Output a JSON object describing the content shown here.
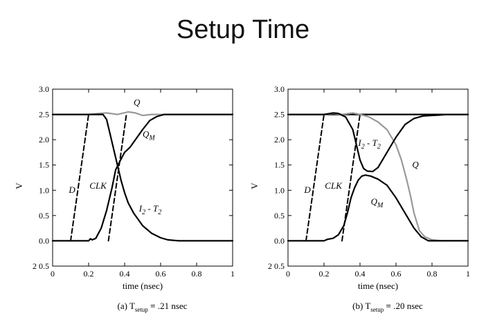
{
  "slide": {
    "title": "Setup Time"
  },
  "chart_data": [
    {
      "type": "line",
      "xlabel": "time (nsec)",
      "ylabel": "V",
      "xlim": [
        0,
        1
      ],
      "ylim": [
        -0.5,
        3.0
      ],
      "x_ticks": [
        "0",
        "0.2",
        "0.4",
        "0.6",
        "0.8",
        "1"
      ],
      "y_ticks": [
        "2 0.5",
        "0.0",
        "0.5",
        "1.0",
        "1.5",
        "2.0",
        "2.5",
        "3.0"
      ],
      "caption": {
        "prefix": "(a) T",
        "sub": "setup",
        "eq": "=",
        "value": ".21 nsec"
      },
      "labels": [
        {
          "text": "Q",
          "x": 0.45,
          "y": 2.68
        },
        {
          "text": "Q",
          "sub": "M",
          "x": 0.5,
          "y": 2.05
        },
        {
          "text": "D",
          "x": 0.09,
          "y": 0.95
        },
        {
          "text": "CLK",
          "x": 0.205,
          "y": 1.03
        },
        {
          "text": "I",
          "sub": "2",
          "dash": "-",
          "post": "T",
          "post_sub": "2",
          "x": 0.48,
          "y": 0.58
        }
      ],
      "series": [
        {
          "style": "dashed",
          "color": "#000000",
          "x": [
            0.1,
            0.2
          ],
          "values": [
            0.0,
            2.5
          ]
        },
        {
          "style": "dashed",
          "color": "#000000",
          "x": [
            0.31,
            0.41
          ],
          "values": [
            0.0,
            2.5
          ]
        },
        {
          "style": "solid",
          "color": "#999999",
          "x": [
            0,
            0.2,
            0.26,
            0.3,
            0.36,
            0.42,
            0.46,
            0.5,
            0.55,
            0.6,
            1.0
          ],
          "values": [
            2.5,
            2.5,
            2.52,
            2.53,
            2.5,
            2.55,
            2.53,
            2.48,
            2.5,
            2.5,
            2.5
          ]
        },
        {
          "style": "solid",
          "color": "#000000",
          "x": [
            0,
            0.15,
            0.2,
            0.21,
            0.22,
            0.24,
            0.27,
            0.3,
            0.33,
            0.35,
            0.37,
            0.4,
            0.43,
            0.46,
            0.5,
            0.54,
            0.58,
            0.62,
            0.65,
            1.0
          ],
          "values": [
            0.0,
            0.0,
            0.0,
            0.04,
            0.02,
            0.05,
            0.25,
            0.6,
            1.05,
            1.4,
            1.55,
            1.75,
            1.85,
            2.0,
            2.2,
            2.38,
            2.46,
            2.5,
            2.5,
            2.5
          ]
        },
        {
          "style": "solid",
          "color": "#000000",
          "x": [
            0,
            0.2,
            0.26,
            0.28,
            0.3,
            0.32,
            0.34,
            0.36,
            0.38,
            0.4,
            0.42,
            0.45,
            0.5,
            0.55,
            0.6,
            0.64,
            0.7,
            1.0
          ],
          "values": [
            2.5,
            2.5,
            2.5,
            2.5,
            2.4,
            2.1,
            1.8,
            1.5,
            1.2,
            0.95,
            0.75,
            0.55,
            0.3,
            0.15,
            0.06,
            0.02,
            0.0,
            0.0
          ]
        }
      ]
    },
    {
      "type": "line",
      "xlabel": "time (nsec)",
      "ylabel": "V",
      "xlim": [
        0,
        1
      ],
      "ylim": [
        -0.5,
        3.0
      ],
      "x_ticks": [
        "0",
        "0.2",
        "0.4",
        "0.6",
        "0.8",
        "1"
      ],
      "y_ticks": [
        "2 0.5",
        "0.0",
        "0.5",
        "1.0",
        "1.5",
        "2.0",
        "2.5",
        "3.0"
      ],
      "caption": {
        "prefix": "(b) T",
        "sub": "setup",
        "eq": "=",
        "value": ".20 nsec"
      },
      "labels": [
        {
          "text": "I",
          "sub": "2",
          "dash": "-",
          "post": "T",
          "post_sub": "2",
          "x": 0.39,
          "y": 1.88
        },
        {
          "text": "Q",
          "x": 0.69,
          "y": 1.45
        },
        {
          "text": "D",
          "x": 0.09,
          "y": 0.95
        },
        {
          "text": "CLK",
          "x": 0.205,
          "y": 1.03
        },
        {
          "text": "Q",
          "sub": "M",
          "x": 0.46,
          "y": 0.72
        }
      ],
      "series": [
        {
          "style": "solid",
          "color": "#000000",
          "x": [
            0,
            1.0
          ],
          "values": [
            2.5,
            2.5
          ]
        },
        {
          "style": "dashed",
          "color": "#000000",
          "x": [
            0.1,
            0.2
          ],
          "values": [
            0.0,
            2.5
          ]
        },
        {
          "style": "dashed",
          "color": "#000000",
          "x": [
            0.3,
            0.4
          ],
          "values": [
            0.0,
            2.5
          ]
        },
        {
          "style": "solid",
          "color": "#999999",
          "x": [
            0,
            0.2,
            0.25,
            0.3,
            0.36,
            0.4,
            0.45,
            0.5,
            0.55,
            0.6,
            0.63,
            0.66,
            0.68,
            0.7,
            0.73,
            0.76,
            0.8,
            0.85,
            1.0
          ],
          "values": [
            2.5,
            2.5,
            2.52,
            2.5,
            2.53,
            2.5,
            2.45,
            2.35,
            2.2,
            1.9,
            1.6,
            1.2,
            0.9,
            0.55,
            0.2,
            0.08,
            0.02,
            0.0,
            0.0
          ]
        },
        {
          "style": "solid",
          "color": "#000000",
          "x": [
            0,
            0.2,
            0.25,
            0.28,
            0.32,
            0.36,
            0.38,
            0.4,
            0.42,
            0.44,
            0.47,
            0.5,
            0.55,
            0.6,
            0.65,
            0.7,
            0.75,
            0.8,
            0.85,
            0.88,
            1.0
          ],
          "values": [
            2.5,
            2.5,
            2.53,
            2.52,
            2.45,
            2.2,
            1.9,
            1.6,
            1.43,
            1.38,
            1.37,
            1.45,
            1.75,
            2.05,
            2.3,
            2.42,
            2.47,
            2.48,
            2.49,
            2.5,
            2.5
          ]
        },
        {
          "style": "solid",
          "color": "#000000",
          "x": [
            0,
            0.15,
            0.2,
            0.22,
            0.25,
            0.28,
            0.31,
            0.33,
            0.35,
            0.37,
            0.39,
            0.41,
            0.43,
            0.46,
            0.5,
            0.55,
            0.6,
            0.65,
            0.7,
            0.74,
            0.78,
            1.0
          ],
          "values": [
            0.0,
            0.0,
            0.0,
            0.03,
            0.05,
            0.12,
            0.3,
            0.55,
            0.85,
            1.05,
            1.2,
            1.28,
            1.3,
            1.28,
            1.22,
            1.1,
            0.85,
            0.55,
            0.25,
            0.08,
            0.0,
            0.0
          ]
        }
      ]
    }
  ]
}
